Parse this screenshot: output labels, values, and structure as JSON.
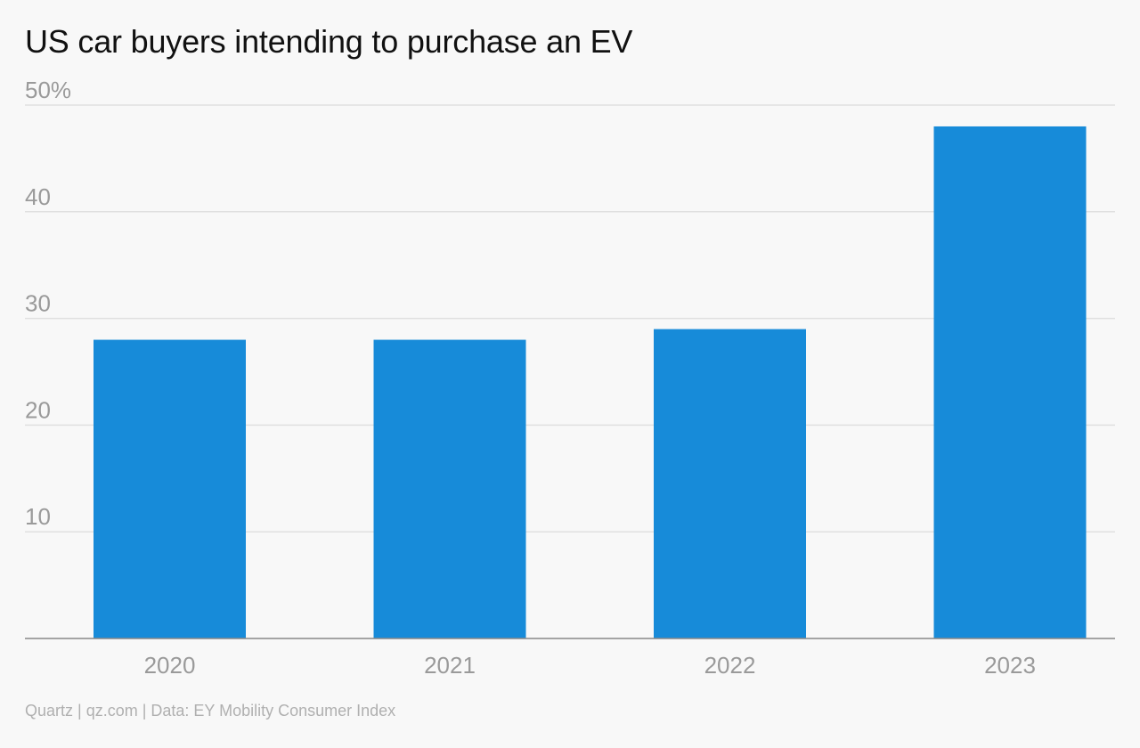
{
  "colors": {
    "bar": "#178bd9",
    "grid": "#e0e0e0",
    "axis": "#888888",
    "tick_text": "#9a9a9a",
    "footer_text": "#b0b0b0",
    "background": "#f8f8f8"
  },
  "footer": {
    "source": "Quartz | qz.com | Data: EY Mobility Consumer Index"
  },
  "chart_data": {
    "type": "bar",
    "title": "US car buyers intending to purchase an EV",
    "xlabel": "",
    "ylabel": "",
    "categories": [
      "2020",
      "2021",
      "2022",
      "2023"
    ],
    "values": [
      28,
      28,
      29,
      48
    ],
    "ylim": [
      0,
      50
    ],
    "y_ticks": [
      10,
      20,
      30,
      40,
      50
    ],
    "y_tick_labels": [
      "10",
      "20",
      "30",
      "40",
      "50%"
    ],
    "grid": true,
    "legend": "none"
  }
}
